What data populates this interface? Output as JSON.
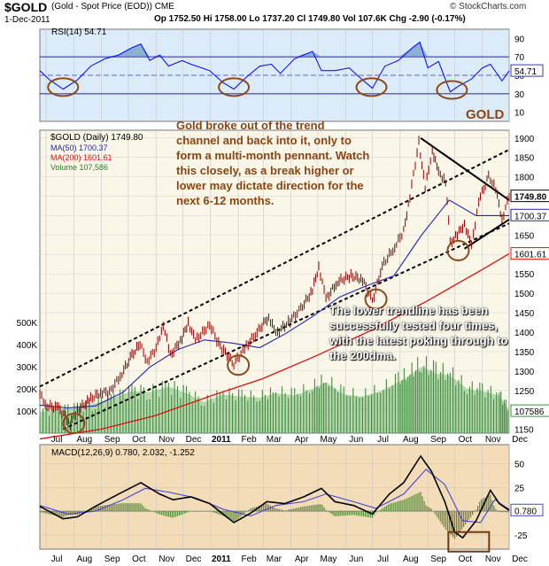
{
  "header": {
    "symbol": "$GOLD",
    "name": "(Gold - Spot Price (EOD)) CME",
    "date": "1-Dec-2011",
    "ohlc": "Op 1752.50  Hi 1758.00  Lo 1737.20  Cl 1749.80  Vol 107.6K  Chg -2.90 (-0.17%)",
    "watermark": "© StockCharts.com",
    "gold_label": "GOLD"
  },
  "colors": {
    "panel_bg": "#dcebf9",
    "price_bg": "#faf6e8",
    "macd_bg": "#f3dcb8",
    "price_bar": "#8b0000",
    "ma50": "#2323b0",
    "ma200": "#e01010",
    "volume": "#68b068",
    "annotation": "#8b4513",
    "rsi_line": "#0000ff",
    "circle": "#8b4a1a"
  },
  "rsi_panel": {
    "legend": "RSI(14) 54.71",
    "ticks": [
      "90",
      "70",
      "50",
      "30",
      "10"
    ],
    "current_label": "54.71",
    "circles": [
      {
        "date": "Jul 20",
        "value": 40
      },
      {
        "date": "Jan 27",
        "value": 40
      },
      {
        "date": "Jun 30",
        "value": 40
      },
      {
        "date": "Sep 28",
        "value": 37
      }
    ]
  },
  "price_panel": {
    "legend": {
      "price": "$GOLD (Daily) 1749.80",
      "ma50": "MA(50) 1700.37",
      "ma200": "MA(200) 1601.61",
      "volume": "Volume 107,586"
    },
    "y_ticks": [
      "1900",
      "1850",
      "1800",
      "1750",
      "1700",
      "1650",
      "1600",
      "1550",
      "1500",
      "1450",
      "1400",
      "1350",
      "1300",
      "1250",
      "1200",
      "1150"
    ],
    "volume_ticks": [
      "500K",
      "400K",
      "300K",
      "200K",
      "100K"
    ],
    "price_tags": {
      "close": "1749.80",
      "ma50": "1700.37",
      "ma200": "1601.61",
      "volume": "107586"
    },
    "annotation_top": [
      "Gold broke out of the trend",
      "channel and back into it, only to",
      "form a multi-month pennant. Watch",
      "this closely, as a break higher or",
      "lower may dictate direction for the",
      "next 6-12 months."
    ],
    "annotation_bottom": [
      "The lower trendline has been",
      "successfully tested four times,",
      "with the latest poking through to",
      "the 200dma."
    ],
    "circles": [
      {
        "date": "Aug 1",
        "price": 1165
      },
      {
        "date": "Feb 1",
        "price": 1315
      },
      {
        "date": "Jul 5",
        "price": 1485
      },
      {
        "date": "Oct 5",
        "price": 1610
      }
    ]
  },
  "macd_panel": {
    "legend": "MACD(12,26,9) 0.780, 2.032, -1.252",
    "ticks": [
      "50",
      "25",
      "0",
      "-25"
    ],
    "current_label": "0.780"
  },
  "x_labels": [
    "Jul",
    "Aug",
    "Sep",
    "Oct",
    "Nov",
    "Dec",
    "2011",
    "Feb",
    "Mar",
    "Apr",
    "May",
    "Jun",
    "Jul",
    "Aug",
    "Sep",
    "Oct",
    "Nov",
    "Dec"
  ],
  "chart_data": {
    "type": "line",
    "title": "$GOLD (Gold - Spot Price (EOD)) CME",
    "x_range": [
      "2010-06-24",
      "2011-12-01"
    ],
    "price_ylim": [
      1140,
      1920
    ],
    "price_points": [
      [
        "2010-06-24",
        1240
      ],
      [
        "2010-07-02",
        1210
      ],
      [
        "2010-07-15",
        1205
      ],
      [
        "2010-07-28",
        1165
      ],
      [
        "2010-08-05",
        1198
      ],
      [
        "2010-08-18",
        1225
      ],
      [
        "2010-08-31",
        1245
      ],
      [
        "2010-09-10",
        1245
      ],
      [
        "2010-09-24",
        1295
      ],
      [
        "2010-10-05",
        1340
      ],
      [
        "2010-10-14",
        1370
      ],
      [
        "2010-10-22",
        1325
      ],
      [
        "2010-11-01",
        1358
      ],
      [
        "2010-11-09",
        1420
      ],
      [
        "2010-11-17",
        1340
      ],
      [
        "2010-11-30",
        1385
      ],
      [
        "2010-12-07",
        1425
      ],
      [
        "2010-12-15",
        1378
      ],
      [
        "2010-12-31",
        1420
      ],
      [
        "2011-01-10",
        1370
      ],
      [
        "2011-01-27",
        1318
      ],
      [
        "2011-02-10",
        1365
      ],
      [
        "2011-02-22",
        1400
      ],
      [
        "2011-03-07",
        1440
      ],
      [
        "2011-03-15",
        1395
      ],
      [
        "2011-03-31",
        1430
      ],
      [
        "2011-04-12",
        1460
      ],
      [
        "2011-04-25",
        1508
      ],
      [
        "2011-05-02",
        1570
      ],
      [
        "2011-05-10",
        1485
      ],
      [
        "2011-05-23",
        1530
      ],
      [
        "2011-06-07",
        1545
      ],
      [
        "2011-06-20",
        1535
      ],
      [
        "2011-07-01",
        1480
      ],
      [
        "2011-07-12",
        1570
      ],
      [
        "2011-07-26",
        1620
      ],
      [
        "2011-08-05",
        1660
      ],
      [
        "2011-08-12",
        1750
      ],
      [
        "2011-08-22",
        1890
      ],
      [
        "2011-08-29",
        1770
      ],
      [
        "2011-09-06",
        1870
      ],
      [
        "2011-09-13",
        1810
      ],
      [
        "2011-09-21",
        1790
      ],
      [
        "2011-09-26",
        1630
      ],
      [
        "2011-10-04",
        1650
      ],
      [
        "2011-10-12",
        1680
      ],
      [
        "2011-10-20",
        1620
      ],
      [
        "2011-10-28",
        1740
      ],
      [
        "2011-11-08",
        1800
      ],
      [
        "2011-11-16",
        1770
      ],
      [
        "2011-11-23",
        1690
      ],
      [
        "2011-12-01",
        1750
      ]
    ],
    "ma50_points": [
      [
        "2010-06-24",
        1212
      ],
      [
        "2010-07-25",
        1205
      ],
      [
        "2010-08-25",
        1210
      ],
      [
        "2010-09-25",
        1245
      ],
      [
        "2010-10-25",
        1310
      ],
      [
        "2010-11-25",
        1355
      ],
      [
        "2010-12-25",
        1380
      ],
      [
        "2011-01-25",
        1372
      ],
      [
        "2011-02-25",
        1360
      ],
      [
        "2011-03-25",
        1395
      ],
      [
        "2011-04-25",
        1440
      ],
      [
        "2011-05-25",
        1490
      ],
      [
        "2011-06-25",
        1520
      ],
      [
        "2011-07-25",
        1545
      ],
      [
        "2011-08-25",
        1650
      ],
      [
        "2011-09-25",
        1740
      ],
      [
        "2011-10-25",
        1700
      ],
      [
        "2011-12-01",
        1700
      ]
    ],
    "ma200_points": [
      [
        "2010-06-24",
        1125
      ],
      [
        "2010-08-31",
        1150
      ],
      [
        "2010-10-31",
        1185
      ],
      [
        "2010-12-31",
        1235
      ],
      [
        "2011-02-28",
        1280
      ],
      [
        "2011-04-30",
        1340
      ],
      [
        "2011-06-30",
        1405
      ],
      [
        "2011-08-31",
        1480
      ],
      [
        "2011-10-31",
        1560
      ],
      [
        "2011-12-01",
        1602
      ]
    ],
    "trendlines": [
      {
        "name": "upper channel",
        "from": [
          "2010-06-24",
          1260
        ],
        "to": [
          "2011-12-01",
          1870
        ]
      },
      {
        "name": "lower channel",
        "from": [
          "2010-07-20",
          1150
        ],
        "to": [
          "2011-12-01",
          1680
        ]
      },
      {
        "name": "pennant top",
        "from": [
          "2011-08-24",
          1900
        ],
        "to": [
          "2011-12-01",
          1740
        ]
      }
    ],
    "volume_ylim": [
      0,
      600000
    ],
    "volume_points": [
      [
        "2010-06-24",
        95000
      ],
      [
        "2010-07-15",
        110000
      ],
      [
        "2010-08-05",
        120000
      ],
      [
        "2010-08-25",
        135000
      ],
      [
        "2010-09-15",
        160000
      ],
      [
        "2010-10-05",
        190000
      ],
      [
        "2010-10-25",
        185000
      ],
      [
        "2010-11-15",
        210000
      ],
      [
        "2010-12-05",
        180000
      ],
      [
        "2010-12-25",
        140000
      ],
      [
        "2011-01-15",
        175000
      ],
      [
        "2011-02-05",
        165000
      ],
      [
        "2011-02-25",
        160000
      ],
      [
        "2011-03-15",
        180000
      ],
      [
        "2011-04-05",
        170000
      ],
      [
        "2011-04-25",
        200000
      ],
      [
        "2011-05-10",
        230000
      ],
      [
        "2011-05-30",
        175000
      ],
      [
        "2011-06-20",
        165000
      ],
      [
        "2011-07-10",
        190000
      ],
      [
        "2011-07-30",
        230000
      ],
      [
        "2011-08-12",
        260000
      ],
      [
        "2011-08-25",
        300000
      ],
      [
        "2011-09-10",
        270000
      ],
      [
        "2011-09-26",
        260000
      ],
      [
        "2011-10-15",
        200000
      ],
      [
        "2011-11-01",
        190000
      ],
      [
        "2011-11-20",
        170000
      ],
      [
        "2011-12-01",
        107586
      ]
    ],
    "rsi_ylim": [
      0,
      100
    ],
    "rsi_points": [
      [
        "2010-06-24",
        55
      ],
      [
        "2010-07-05",
        45
      ],
      [
        "2010-07-20",
        35
      ],
      [
        "2010-08-05",
        45
      ],
      [
        "2010-08-20",
        60
      ],
      [
        "2010-09-05",
        68
      ],
      [
        "2010-09-20",
        72
      ],
      [
        "2010-10-05",
        80
      ],
      [
        "2010-10-15",
        84
      ],
      [
        "2010-10-25",
        66
      ],
      [
        "2010-11-05",
        72
      ],
      [
        "2010-11-15",
        60
      ],
      [
        "2010-11-30",
        66
      ],
      [
        "2010-12-10",
        62
      ],
      [
        "2010-12-31",
        55
      ],
      [
        "2011-01-15",
        42
      ],
      [
        "2011-01-27",
        35
      ],
      [
        "2011-02-10",
        48
      ],
      [
        "2011-02-25",
        60
      ],
      [
        "2011-03-10",
        62
      ],
      [
        "2011-03-20",
        52
      ],
      [
        "2011-04-05",
        68
      ],
      [
        "2011-04-25",
        76
      ],
      [
        "2011-05-05",
        55
      ],
      [
        "2011-05-20",
        55
      ],
      [
        "2011-06-05",
        58
      ],
      [
        "2011-06-20",
        45
      ],
      [
        "2011-07-01",
        36
      ],
      [
        "2011-07-15",
        60
      ],
      [
        "2011-07-30",
        66
      ],
      [
        "2011-08-15",
        80
      ],
      [
        "2011-08-23",
        86
      ],
      [
        "2011-09-01",
        58
      ],
      [
        "2011-09-13",
        65
      ],
      [
        "2011-09-26",
        32
      ],
      [
        "2011-10-05",
        38
      ],
      [
        "2011-10-20",
        46
      ],
      [
        "2011-11-01",
        58
      ],
      [
        "2011-11-10",
        62
      ],
      [
        "2011-11-23",
        44
      ],
      [
        "2011-12-01",
        54.71
      ]
    ],
    "macd_ylim": [
      -40,
      70
    ],
    "macd_points": [
      [
        "2010-06-24",
        5
      ],
      [
        "2010-07-20",
        -8
      ],
      [
        "2010-08-05",
        -6
      ],
      [
        "2010-08-25",
        5
      ],
      [
        "2010-09-20",
        18
      ],
      [
        "2010-10-15",
        30
      ],
      [
        "2010-11-05",
        18
      ],
      [
        "2010-11-20",
        12
      ],
      [
        "2010-12-10",
        15
      ],
      [
        "2010-12-31",
        8
      ],
      [
        "2011-01-27",
        -12
      ],
      [
        "2011-02-15",
        -2
      ],
      [
        "2011-03-05",
        10
      ],
      [
        "2011-03-25",
        8
      ],
      [
        "2011-04-15",
        15
      ],
      [
        "2011-05-05",
        24
      ],
      [
        "2011-05-20",
        10
      ],
      [
        "2011-06-10",
        6
      ],
      [
        "2011-07-01",
        -3
      ],
      [
        "2011-07-20",
        18
      ],
      [
        "2011-08-05",
        30
      ],
      [
        "2011-08-24",
        58
      ],
      [
        "2011-09-05",
        42
      ],
      [
        "2011-09-20",
        10
      ],
      [
        "2011-10-01",
        -22
      ],
      [
        "2011-10-10",
        -28
      ],
      [
        "2011-10-25",
        -10
      ],
      [
        "2011-11-10",
        22
      ],
      [
        "2011-11-20",
        8
      ],
      [
        "2011-12-01",
        0.78
      ]
    ],
    "signal_points": [
      [
        "2010-06-24",
        6
      ],
      [
        "2010-07-25",
        -3
      ],
      [
        "2010-08-25",
        0
      ],
      [
        "2010-09-25",
        12
      ],
      [
        "2010-10-20",
        24
      ],
      [
        "2010-11-15",
        20
      ],
      [
        "2010-12-15",
        14
      ],
      [
        "2011-01-15",
        2
      ],
      [
        "2011-02-15",
        -5
      ],
      [
        "2011-03-15",
        6
      ],
      [
        "2011-04-15",
        10
      ],
      [
        "2011-05-10",
        18
      ],
      [
        "2011-06-10",
        10
      ],
      [
        "2011-07-05",
        3
      ],
      [
        "2011-08-05",
        18
      ],
      [
        "2011-08-30",
        44
      ],
      [
        "2011-09-20",
        28
      ],
      [
        "2011-10-10",
        -10
      ],
      [
        "2011-10-30",
        -12
      ],
      [
        "2011-11-15",
        12
      ],
      [
        "2011-12-01",
        2.032
      ]
    ],
    "macd_values": {
      "macd": 0.78,
      "signal": 2.032,
      "histogram": -1.252
    }
  }
}
